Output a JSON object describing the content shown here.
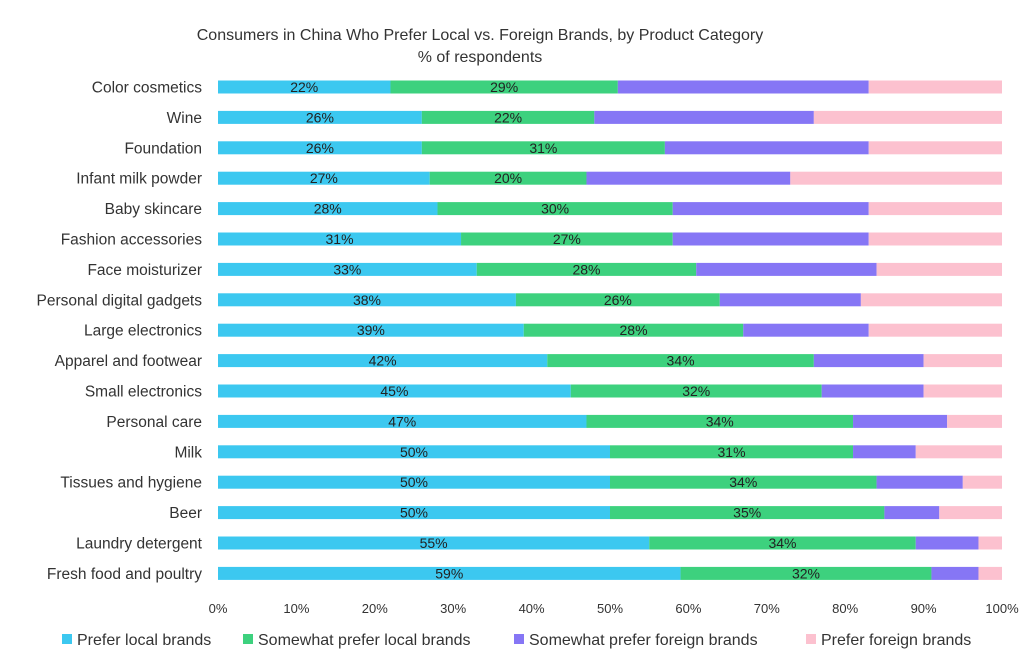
{
  "chart_data": {
    "type": "bar",
    "orientation": "horizontal",
    "stacked": true,
    "title": "Consumers in China Who Prefer Local vs. Foreign Brands, by Product Category",
    "subtitle": "% of respondents",
    "xlim": [
      0,
      100
    ],
    "x_ticks": [
      "0%",
      "10%",
      "20%",
      "30%",
      "40%",
      "50%",
      "60%",
      "70%",
      "80%",
      "90%",
      "100%"
    ],
    "grid": false,
    "legend_position": "bottom",
    "categories": [
      "Color cosmetics",
      "Wine",
      "Foundation",
      "Infant milk powder",
      "Baby skincare",
      "Fashion accessories",
      "Face moisturizer",
      "Personal digital gadgets",
      "Large electronics",
      "Apparel and footwear",
      "Small electronics",
      "Personal care",
      "Milk",
      "Tissues and hygiene",
      "Beer",
      "Laundry detergent",
      "Fresh food and poultry"
    ],
    "series": [
      {
        "name": "Prefer local brands",
        "color": "#3cc8f0",
        "show_labels": true,
        "values": [
          22,
          26,
          26,
          27,
          28,
          31,
          33,
          38,
          39,
          42,
          45,
          47,
          50,
          50,
          50,
          55,
          59
        ]
      },
      {
        "name": "Somewhat prefer local brands",
        "color": "#3dd17e",
        "show_labels": true,
        "values": [
          29,
          22,
          31,
          20,
          30,
          27,
          28,
          26,
          28,
          34,
          32,
          34,
          31,
          34,
          35,
          34,
          32
        ]
      },
      {
        "name": "Somewhat prefer foreign brands",
        "color": "#8676f5",
        "show_labels": false,
        "values": [
          32,
          28,
          26,
          26,
          25,
          25,
          23,
          18,
          16,
          14,
          13,
          12,
          8,
          11,
          7,
          8,
          6
        ]
      },
      {
        "name": "Prefer foreign brands",
        "color": "#fcc1cf",
        "show_labels": false,
        "values": [
          17,
          24,
          17,
          27,
          17,
          17,
          16,
          18,
          17,
          10,
          10,
          7,
          11,
          5,
          8,
          3,
          3
        ]
      }
    ]
  }
}
